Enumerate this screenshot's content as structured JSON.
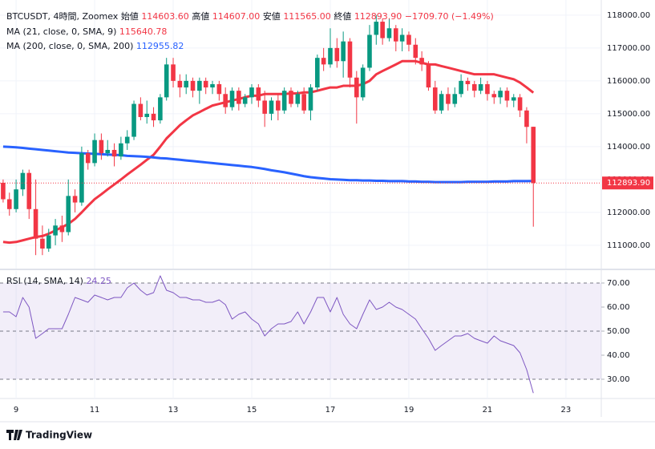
{
  "header": {
    "symbol": "BTCUSDT, 4時間, Zoomex",
    "items": [
      {
        "label": "始値",
        "value": "114603.60"
      },
      {
        "label": "高値",
        "value": "114607.00"
      },
      {
        "label": "安値",
        "value": "111565.00"
      },
      {
        "label": "終値",
        "value": "112893.90"
      }
    ],
    "change": "−1709.70 (−1.49%)"
  },
  "chart_data": [
    {
      "type": "candlestick",
      "up_color": "#089981",
      "down_color": "#f23645",
      "grid": true,
      "xlim": [
        8.59,
        23.9
      ],
      "xticks": [
        9,
        11,
        13,
        15,
        17,
        19,
        21,
        23
      ],
      "ylim": [
        110290,
        118460
      ],
      "yticks": [
        {
          "value": 111000,
          "label": "111000.00"
        },
        {
          "value": 112000,
          "label": "112000.00"
        },
        {
          "value": 113000,
          "label": "113000.00"
        },
        {
          "value": 114000,
          "label": "114000.00"
        },
        {
          "value": 115000,
          "label": "115000.00"
        },
        {
          "value": 116000,
          "label": "116000.00"
        },
        {
          "value": 117000,
          "label": "117000.00"
        },
        {
          "value": 118000,
          "label": "118000.00"
        }
      ],
      "last_price_label": "112893.90",
      "x": [
        8.67,
        8.83,
        9,
        9.17,
        9.33,
        9.5,
        9.67,
        9.83,
        10,
        10.17,
        10.33,
        10.5,
        10.67,
        10.83,
        11,
        11.17,
        11.33,
        11.5,
        11.67,
        11.83,
        12,
        12.17,
        12.33,
        12.5,
        12.67,
        12.83,
        13,
        13.17,
        13.33,
        13.5,
        13.67,
        13.83,
        14,
        14.17,
        14.33,
        14.5,
        14.67,
        14.83,
        15,
        15.17,
        15.33,
        15.5,
        15.67,
        15.83,
        16,
        16.17,
        16.33,
        16.5,
        16.67,
        16.83,
        17,
        17.17,
        17.33,
        17.5,
        17.67,
        17.83,
        18,
        18.17,
        18.33,
        18.5,
        18.67,
        18.83,
        19,
        19.17,
        19.33,
        19.5,
        19.67,
        19.83,
        20,
        20.17,
        20.33,
        20.5,
        20.67,
        20.83,
        21,
        21.17,
        21.33,
        21.5,
        21.67,
        21.83,
        22,
        22.17
      ],
      "ohlc": [
        [
          112900,
          113000,
          112300,
          112400
        ],
        [
          112400,
          112600,
          111900,
          112100
        ],
        [
          112100,
          113000,
          112000,
          112700
        ],
        [
          112700,
          113300,
          112500,
          113200
        ],
        [
          113200,
          113300,
          111800,
          112100
        ],
        [
          112100,
          113000,
          110700,
          111200
        ],
        [
          111200,
          111600,
          110700,
          110900
        ],
        [
          110900,
          111500,
          110800,
          111300
        ],
        [
          111300,
          111800,
          111000,
          111600
        ],
        [
          111600,
          111900,
          111100,
          111400
        ],
        [
          111400,
          113000,
          111300,
          112500
        ],
        [
          112500,
          112700,
          112000,
          112300
        ],
        [
          112300,
          114000,
          112200,
          113800
        ],
        [
          113800,
          113900,
          113300,
          113500
        ],
        [
          113500,
          114400,
          113400,
          114200
        ],
        [
          114200,
          114400,
          113600,
          113800
        ],
        [
          113800,
          114200,
          113700,
          113900
        ],
        [
          113900,
          114100,
          113400,
          113700
        ],
        [
          113700,
          114300,
          113600,
          114100
        ],
        [
          114100,
          114500,
          113900,
          114300
        ],
        [
          114300,
          115400,
          114200,
          115300
        ],
        [
          115300,
          115500,
          114800,
          114900
        ],
        [
          114900,
          115400,
          114700,
          115000
        ],
        [
          115000,
          115200,
          114600,
          114800
        ],
        [
          114800,
          115600,
          114700,
          115500
        ],
        [
          115500,
          116700,
          115400,
          116500
        ],
        [
          116500,
          116700,
          115800,
          116000
        ],
        [
          116000,
          116200,
          115500,
          115800
        ],
        [
          115800,
          116200,
          115600,
          116000
        ],
        [
          116000,
          116100,
          115500,
          115700
        ],
        [
          115700,
          116100,
          115300,
          116000
        ],
        [
          116000,
          116100,
          115600,
          115800
        ],
        [
          115800,
          116000,
          115600,
          115900
        ],
        [
          115900,
          116000,
          115400,
          115600
        ],
        [
          115600,
          115800,
          115000,
          115200
        ],
        [
          115200,
          115800,
          115100,
          115700
        ],
        [
          115700,
          115800,
          115100,
          115300
        ],
        [
          115300,
          115600,
          115200,
          115500
        ],
        [
          115500,
          115900,
          115300,
          115800
        ],
        [
          115800,
          115900,
          115200,
          115400
        ],
        [
          115400,
          115700,
          114600,
          115000
        ],
        [
          115000,
          115500,
          114800,
          115400
        ],
        [
          115400,
          115600,
          114800,
          115100
        ],
        [
          115100,
          115800,
          115000,
          115700
        ],
        [
          115700,
          115800,
          115200,
          115300
        ],
        [
          115300,
          115700,
          115200,
          115600
        ],
        [
          115600,
          115800,
          115000,
          115100
        ],
        [
          115100,
          115900,
          114800,
          115800
        ],
        [
          115800,
          116800,
          115700,
          116700
        ],
        [
          116700,
          117000,
          116300,
          116500
        ],
        [
          116500,
          117600,
          116400,
          117000
        ],
        [
          117000,
          117300,
          116400,
          116600
        ],
        [
          116600,
          117500,
          116100,
          117200
        ],
        [
          117200,
          117300,
          115800,
          116100
        ],
        [
          116100,
          116300,
          114700,
          115500
        ],
        [
          115500,
          116500,
          115400,
          116400
        ],
        [
          116400,
          117700,
          116300,
          117400
        ],
        [
          117400,
          118000,
          117100,
          117800
        ],
        [
          117800,
          117900,
          117100,
          117300
        ],
        [
          117300,
          117900,
          117200,
          117600
        ],
        [
          117600,
          117700,
          116900,
          117200
        ],
        [
          117200,
          117600,
          116900,
          117400
        ],
        [
          117400,
          117500,
          116900,
          117100
        ],
        [
          117100,
          117300,
          116500,
          116700
        ],
        [
          116700,
          116900,
          116300,
          116500
        ],
        [
          116500,
          116600,
          115700,
          115800
        ],
        [
          115800,
          116000,
          115000,
          115100
        ],
        [
          115100,
          115700,
          115000,
          115600
        ],
        [
          115600,
          115800,
          115100,
          115300
        ],
        [
          115300,
          115800,
          115200,
          115600
        ],
        [
          115600,
          116200,
          115500,
          116000
        ],
        [
          116000,
          116100,
          115700,
          115900
        ],
        [
          115900,
          116000,
          115500,
          115700
        ],
        [
          115700,
          116100,
          115600,
          115900
        ],
        [
          115900,
          116000,
          115400,
          115600
        ],
        [
          115600,
          115700,
          115300,
          115500
        ],
        [
          115500,
          115800,
          115300,
          115700
        ],
        [
          115700,
          115800,
          115200,
          115400
        ],
        [
          115400,
          115600,
          115200,
          115500
        ],
        [
          115500,
          115600,
          114900,
          115100
        ],
        [
          115100,
          115200,
          114100,
          114600
        ],
        [
          114603.6,
          114607,
          111565,
          112893.9
        ]
      ],
      "series": [
        {
          "name": "MA (21, close, 0, SMA, 9)",
          "color": "#f23645",
          "value_label": "115640.78",
          "values": [
            111100,
            111080,
            111100,
            111150,
            111200,
            111250,
            111280,
            111350,
            111450,
            111550,
            111650,
            111800,
            112000,
            112200,
            112400,
            112550,
            112700,
            112850,
            113000,
            113150,
            113300,
            113450,
            113600,
            113750,
            114000,
            114250,
            114450,
            114650,
            114800,
            114950,
            115050,
            115150,
            115250,
            115300,
            115350,
            115400,
            115450,
            115500,
            115550,
            115550,
            115600,
            115600,
            115600,
            115600,
            115620,
            115620,
            115650,
            115650,
            115700,
            115750,
            115800,
            115800,
            115850,
            115850,
            115850,
            115900,
            116000,
            116200,
            116300,
            116400,
            116500,
            116600,
            116600,
            116600,
            116550,
            116500,
            116500,
            116450,
            116400,
            116350,
            116300,
            116250,
            116200,
            116200,
            116200,
            116200,
            116150,
            116100,
            116050,
            115950,
            115800,
            115640.78
          ]
        },
        {
          "name": "MA (200, close, 0, SMA, 200)",
          "color": "#2962ff",
          "value_label": "112955.82",
          "values": [
            114000,
            113990,
            113980,
            113960,
            113940,
            113920,
            113900,
            113880,
            113860,
            113840,
            113820,
            113810,
            113800,
            113790,
            113780,
            113770,
            113760,
            113750,
            113740,
            113720,
            113710,
            113700,
            113690,
            113670,
            113650,
            113640,
            113620,
            113600,
            113580,
            113560,
            113540,
            113520,
            113500,
            113480,
            113460,
            113440,
            113420,
            113400,
            113380,
            113350,
            113320,
            113280,
            113250,
            113220,
            113180,
            113140,
            113100,
            113070,
            113050,
            113030,
            113010,
            113000,
            112990,
            112980,
            112980,
            112970,
            112970,
            112960,
            112960,
            112950,
            112950,
            112950,
            112940,
            112940,
            112930,
            112930,
            112920,
            112920,
            112920,
            112920,
            112920,
            112930,
            112930,
            112930,
            112930,
            112940,
            112940,
            112940,
            112950,
            112950,
            112950,
            112955.82
          ]
        }
      ]
    },
    {
      "type": "line",
      "ylim": [
        22,
        75
      ],
      "yticks": [
        {
          "value": 30,
          "label": "30.00"
        },
        {
          "value": 40,
          "label": "40.00"
        },
        {
          "value": 50,
          "label": "50.00"
        },
        {
          "value": 60,
          "label": "60.00"
        },
        {
          "value": 70,
          "label": "70.00"
        }
      ],
      "bands": [
        30,
        50,
        70
      ],
      "band_fill": "#7e57c2",
      "series": [
        {
          "name": "RSI (14, SMA, 14)",
          "color": "#7e57c2",
          "value_label": "24.25",
          "values": [
            58,
            58,
            56,
            64,
            60,
            47,
            49,
            51,
            51,
            51,
            57,
            64,
            63,
            62,
            65,
            64,
            63,
            64,
            64,
            68,
            70,
            67,
            65,
            66,
            73,
            67,
            66,
            64,
            64,
            63,
            63,
            62,
            62,
            63,
            61,
            55,
            57,
            58,
            55,
            53,
            48,
            51,
            53,
            53,
            54,
            58,
            53,
            58,
            64,
            64,
            58,
            64,
            57,
            53,
            51,
            57,
            63,
            59,
            60,
            62,
            60,
            59,
            57,
            55,
            51,
            47,
            42,
            44,
            46,
            48,
            48,
            49,
            47,
            46,
            45,
            48,
            46,
            45,
            44,
            41,
            34,
            24.25
          ]
        }
      ]
    }
  ],
  "footer": {
    "brand": "TradingView"
  }
}
